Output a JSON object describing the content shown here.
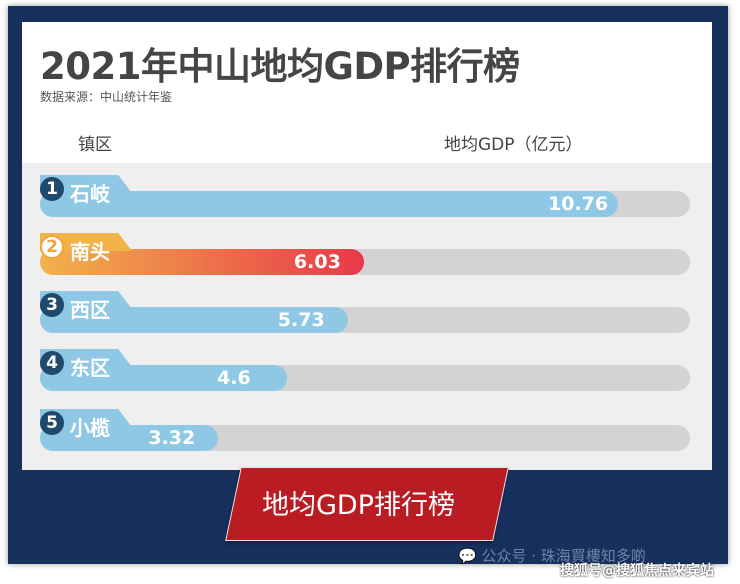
{
  "title": "2021年中山地均GDP排行榜",
  "source": "数据来源：中山统计年鉴",
  "headers": {
    "district": "镇区",
    "value": "地均GDP（亿元）"
  },
  "rows": [
    {
      "rank": "1",
      "name": "石岐",
      "value": "10.76"
    },
    {
      "rank": "2",
      "name": "南头",
      "value": "6.03"
    },
    {
      "rank": "3",
      "name": "西区",
      "value": "5.73"
    },
    {
      "rank": "4",
      "name": "东区",
      "value": "4.6"
    },
    {
      "rank": "5",
      "name": "小榄",
      "value": "3.32"
    }
  ],
  "banner": "地均GDP排行榜",
  "watermark": "公众号 · 珠海買樓知多啲",
  "watermark2": "搜狐号@搜狐焦点来宾站",
  "colors": {
    "frame": "#17305e",
    "bar": "#8ec8e4",
    "highlight": "#e8394a",
    "banner": "#b91c22"
  }
}
